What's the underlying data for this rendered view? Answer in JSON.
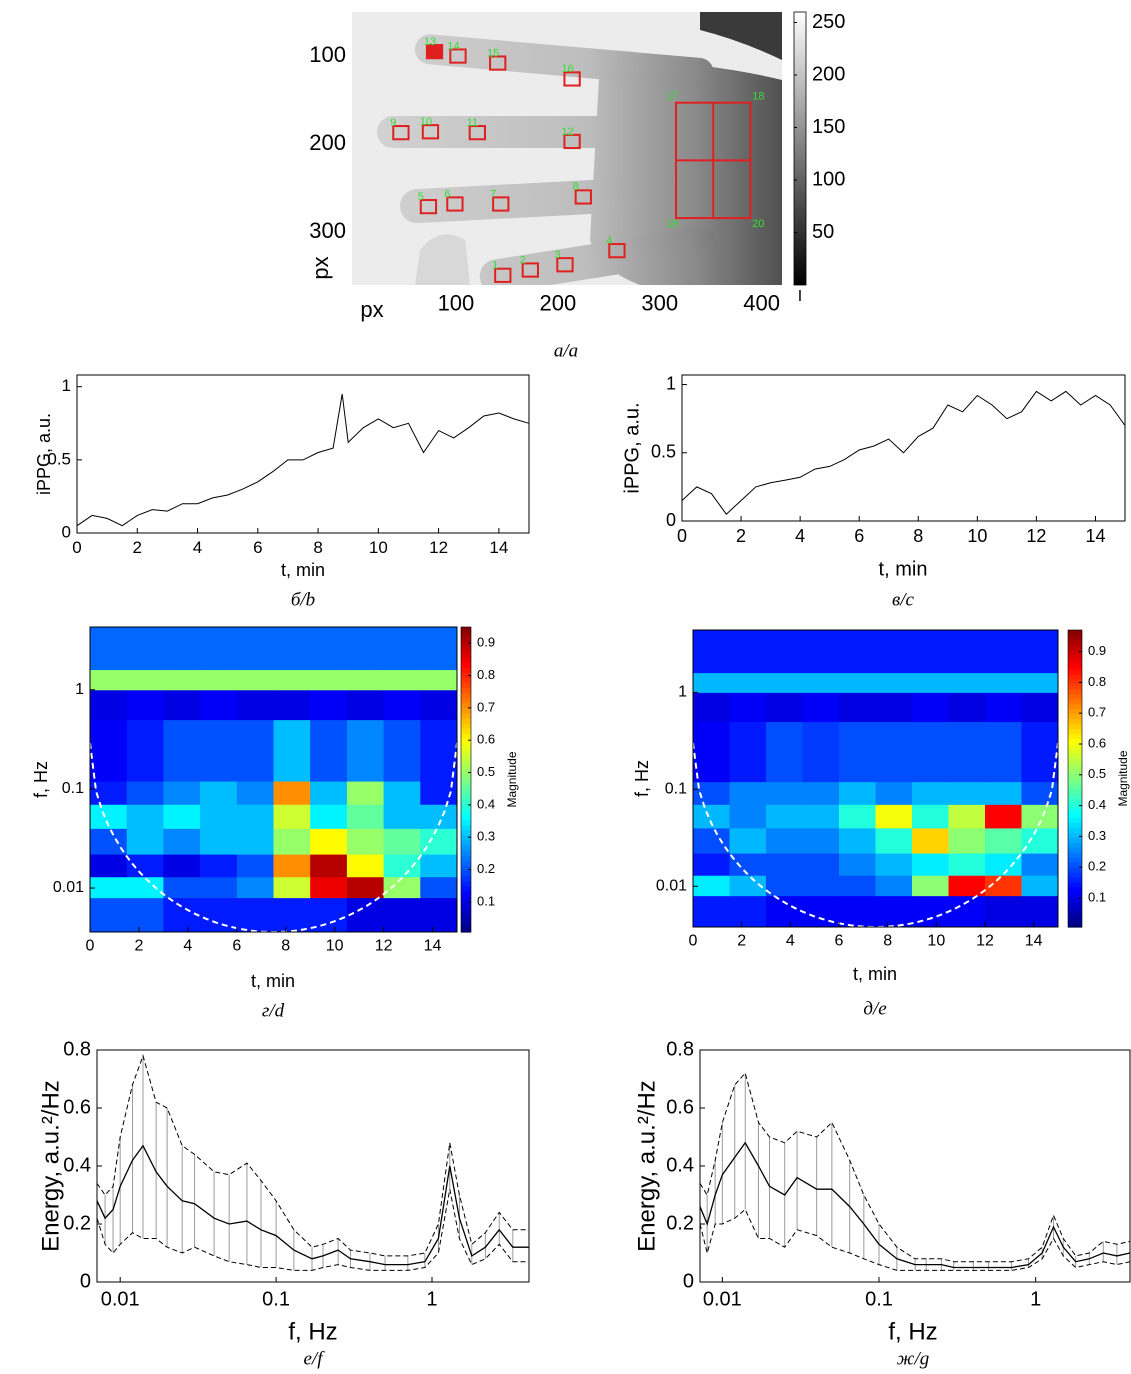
{
  "chart_data": [
    {
      "type": "image",
      "caption": "а/a",
      "xlabel": "px",
      "ylabel": "px",
      "xlim": [
        -2,
        420
      ],
      "ylim": [
        50,
        360
      ],
      "y_reversed": true,
      "xticks": [
        100,
        200,
        300,
        400
      ],
      "yticks": [
        100,
        200,
        300
      ],
      "roi_color": "#e02020",
      "label_color": "#33dd33",
      "rois": [
        {
          "label": "1",
          "x": 146,
          "y": 349
        },
        {
          "label": "2",
          "x": 173,
          "y": 343
        },
        {
          "label": "3",
          "x": 207,
          "y": 337
        },
        {
          "label": "4",
          "x": 258,
          "y": 321
        },
        {
          "label": "5",
          "x": 73,
          "y": 271
        },
        {
          "label": "6",
          "x": 99,
          "y": 268
        },
        {
          "label": "7",
          "x": 144,
          "y": 268
        },
        {
          "label": "8",
          "x": 225,
          "y": 260
        },
        {
          "label": "9",
          "x": 46,
          "y": 187
        },
        {
          "label": "10",
          "x": 75,
          "y": 186
        },
        {
          "label": "11",
          "x": 121,
          "y": 187
        },
        {
          "label": "12",
          "x": 214,
          "y": 197
        },
        {
          "label": "13",
          "x": 79,
          "y": 95,
          "filled": true
        },
        {
          "label": "14",
          "x": 102,
          "y": 100
        },
        {
          "label": "15",
          "x": 141,
          "y": 108
        },
        {
          "label": "16",
          "x": 214,
          "y": 126
        }
      ],
      "region": {
        "labels": [
          "17",
          "18",
          "19",
          "20"
        ],
        "x": [
          316,
          389
        ],
        "y": [
          153,
          284
        ]
      },
      "colorbar": {
        "lim": [
          0,
          260
        ],
        "ticks": [
          50,
          100,
          150,
          200,
          250
        ],
        "label": "I"
      }
    },
    {
      "type": "line",
      "caption": "б/b",
      "xlabel": "t, min",
      "ylabel": "iPPG, a.u.",
      "xlim": [
        0,
        15
      ],
      "ylim": [
        0,
        1.08
      ],
      "xticks": [
        0,
        2,
        4,
        6,
        8,
        10,
        12,
        14
      ],
      "yticks": [
        0,
        0.5,
        1
      ],
      "color": "#000000",
      "x": [
        0,
        0.5,
        1,
        1.5,
        2,
        2.5,
        3,
        3.5,
        4,
        4.5,
        5,
        5.5,
        6,
        6.5,
        7,
        7.5,
        8,
        8.5,
        8.8,
        9,
        9.5,
        10,
        10.5,
        11,
        11.5,
        12,
        12.5,
        13,
        13.5,
        14,
        14.5,
        15
      ],
      "values": [
        0.05,
        0.12,
        0.1,
        0.05,
        0.12,
        0.16,
        0.15,
        0.2,
        0.2,
        0.24,
        0.26,
        0.3,
        0.35,
        0.42,
        0.5,
        0.5,
        0.55,
        0.58,
        0.95,
        0.62,
        0.72,
        0.78,
        0.72,
        0.75,
        0.55,
        0.7,
        0.65,
        0.72,
        0.8,
        0.82,
        0.78,
        0.75
      ]
    },
    {
      "type": "line",
      "caption": "в/c",
      "xlabel": "t, min",
      "ylabel": "iPPG, a.u.",
      "xlim": [
        0,
        15
      ],
      "ylim": [
        0,
        1.07
      ],
      "xticks": [
        0,
        2,
        4,
        6,
        8,
        10,
        12,
        14
      ],
      "yticks": [
        0,
        0.5,
        1
      ],
      "color": "#000000",
      "x": [
        0,
        0.5,
        1,
        1.5,
        2,
        2.5,
        3,
        3.5,
        4,
        4.5,
        5,
        5.5,
        6,
        6.5,
        7,
        7.5,
        8,
        8.5,
        9,
        9.5,
        10,
        10.5,
        11,
        11.5,
        12,
        12.5,
        13,
        13.5,
        14,
        14.5,
        15
      ],
      "values": [
        0.15,
        0.25,
        0.2,
        0.05,
        0.15,
        0.25,
        0.28,
        0.3,
        0.32,
        0.38,
        0.4,
        0.45,
        0.52,
        0.55,
        0.6,
        0.5,
        0.62,
        0.68,
        0.85,
        0.8,
        0.92,
        0.85,
        0.75,
        0.8,
        0.95,
        0.88,
        0.95,
        0.85,
        0.92,
        0.85,
        0.7
      ]
    },
    {
      "type": "heatmap",
      "caption": "г/d",
      "xlabel": "t, min",
      "ylabel": "f, Hz",
      "xlim": [
        0,
        15
      ],
      "ylim": [
        0.0036,
        4.3
      ],
      "ylog": true,
      "xticks": [
        0,
        2,
        4,
        6,
        8,
        10,
        12,
        14
      ],
      "yticks": [
        0.01,
        0.1,
        1
      ],
      "colormap": "jet",
      "clim": [
        0.007,
        0.95
      ],
      "colorbar_ticks": [
        0.1,
        0.2,
        0.3,
        0.4,
        0.5,
        0.6,
        0.7,
        0.8,
        0.9
      ],
      "colorbar_label": "Magnitude",
      "cone_of_influence": true,
      "x_edges": [
        0,
        1.5,
        3,
        4.5,
        6,
        7.5,
        9,
        10.5,
        12,
        13.5,
        15
      ],
      "y_edges": [
        0.0036,
        0.008,
        0.013,
        0.022,
        0.04,
        0.07,
        0.12,
        0.5,
        1,
        1.6,
        4.3
      ],
      "values": [
        [
          0.2,
          0.2,
          0.15,
          0.15,
          0.15,
          0.15,
          0.15,
          0.1,
          0.1,
          0.1
        ],
        [
          0.35,
          0.35,
          0.2,
          0.2,
          0.25,
          0.55,
          0.85,
          0.9,
          0.5,
          0.2
        ],
        [
          0.1,
          0.15,
          0.1,
          0.15,
          0.2,
          0.7,
          0.9,
          0.6,
          0.4,
          0.3
        ],
        [
          0.2,
          0.3,
          0.25,
          0.3,
          0.3,
          0.5,
          0.6,
          0.5,
          0.45,
          0.4
        ],
        [
          0.35,
          0.3,
          0.35,
          0.3,
          0.3,
          0.55,
          0.35,
          0.45,
          0.3,
          0.3
        ],
        [
          0.15,
          0.2,
          0.25,
          0.3,
          0.25,
          0.7,
          0.3,
          0.5,
          0.3,
          0.15
        ],
        [
          0.12,
          0.15,
          0.2,
          0.2,
          0.2,
          0.3,
          0.2,
          0.25,
          0.2,
          0.15
        ],
        [
          0.1,
          0.12,
          0.1,
          0.12,
          0.1,
          0.1,
          0.12,
          0.1,
          0.12,
          0.1
        ],
        [
          0.5,
          0.5,
          0.5,
          0.5,
          0.5,
          0.5,
          0.5,
          0.5,
          0.5,
          0.5
        ],
        [
          0.22,
          0.22,
          0.22,
          0.22,
          0.22,
          0.22,
          0.22,
          0.22,
          0.22,
          0.22
        ]
      ]
    },
    {
      "type": "heatmap",
      "caption": "д/e",
      "xlabel": "t, min",
      "ylabel": "f, Hz",
      "xlim": [
        0,
        15
      ],
      "ylim": [
        0.0038,
        4.4
      ],
      "ylog": true,
      "xticks": [
        0,
        2,
        4,
        6,
        8,
        10,
        12,
        14
      ],
      "yticks": [
        0.01,
        0.1,
        1
      ],
      "colormap": "jet",
      "clim": [
        0.006,
        0.97
      ],
      "colorbar_ticks": [
        0.1,
        0.2,
        0.3,
        0.4,
        0.5,
        0.6,
        0.7,
        0.8,
        0.9
      ],
      "colorbar_label": "Magnitude",
      "cone_of_influence": true,
      "x_edges": [
        0,
        1.5,
        3,
        4.5,
        6,
        7.5,
        9,
        10.5,
        12,
        13.5,
        15
      ],
      "y_edges": [
        0.0038,
        0.008,
        0.013,
        0.022,
        0.04,
        0.07,
        0.12,
        0.5,
        1,
        1.6,
        4.4
      ],
      "values": [
        [
          0.15,
          0.15,
          0.12,
          0.12,
          0.12,
          0.12,
          0.12,
          0.12,
          0.1,
          0.1
        ],
        [
          0.35,
          0.3,
          0.2,
          0.2,
          0.2,
          0.25,
          0.5,
          0.85,
          0.8,
          0.3
        ],
        [
          0.15,
          0.2,
          0.2,
          0.2,
          0.25,
          0.3,
          0.35,
          0.4,
          0.35,
          0.25
        ],
        [
          0.2,
          0.3,
          0.25,
          0.25,
          0.3,
          0.4,
          0.65,
          0.5,
          0.45,
          0.4
        ],
        [
          0.3,
          0.25,
          0.3,
          0.3,
          0.4,
          0.6,
          0.4,
          0.55,
          0.85,
          0.5
        ],
        [
          0.2,
          0.25,
          0.25,
          0.25,
          0.3,
          0.25,
          0.3,
          0.3,
          0.3,
          0.2
        ],
        [
          0.12,
          0.15,
          0.2,
          0.18,
          0.2,
          0.2,
          0.2,
          0.2,
          0.2,
          0.15
        ],
        [
          0.1,
          0.12,
          0.1,
          0.12,
          0.1,
          0.1,
          0.12,
          0.1,
          0.12,
          0.1
        ],
        [
          0.3,
          0.3,
          0.3,
          0.3,
          0.3,
          0.3,
          0.3,
          0.3,
          0.3,
          0.3
        ],
        [
          0.15,
          0.15,
          0.15,
          0.15,
          0.15,
          0.15,
          0.15,
          0.15,
          0.15,
          0.15
        ]
      ]
    },
    {
      "type": "errorband",
      "caption": "е/f",
      "xlabel": "f, Hz",
      "ylabel": "Energy, a.u.²/Hz",
      "xlim": [
        0.0071,
        4.19
      ],
      "xlog": true,
      "ylim": [
        0,
        0.8
      ],
      "xticks": [
        0.01,
        0.1,
        1
      ],
      "yticks": [
        0,
        0.2,
        0.4,
        0.6,
        0.8
      ],
      "color": "#000000",
      "band_color": "#9a9a9a",
      "x": [
        0.0071,
        0.008,
        0.009,
        0.01,
        0.012,
        0.014,
        0.017,
        0.02,
        0.025,
        0.03,
        0.04,
        0.05,
        0.065,
        0.08,
        0.1,
        0.13,
        0.17,
        0.2,
        0.25,
        0.3,
        0.4,
        0.5,
        0.7,
        0.9,
        1.1,
        1.3,
        1.5,
        1.8,
        2.2,
        2.7,
        3.3,
        4.19
      ],
      "values": [
        0.28,
        0.22,
        0.25,
        0.33,
        0.42,
        0.47,
        0.38,
        0.33,
        0.28,
        0.27,
        0.22,
        0.2,
        0.21,
        0.18,
        0.16,
        0.11,
        0.08,
        0.09,
        0.11,
        0.08,
        0.07,
        0.06,
        0.06,
        0.07,
        0.15,
        0.4,
        0.22,
        0.09,
        0.12,
        0.18,
        0.12,
        0.12
      ],
      "upper": [
        0.34,
        0.3,
        0.33,
        0.5,
        0.68,
        0.78,
        0.62,
        0.6,
        0.47,
        0.44,
        0.38,
        0.37,
        0.41,
        0.35,
        0.28,
        0.18,
        0.12,
        0.13,
        0.15,
        0.11,
        0.1,
        0.09,
        0.09,
        0.1,
        0.2,
        0.48,
        0.3,
        0.13,
        0.17,
        0.24,
        0.18,
        0.18
      ],
      "lower": [
        0.22,
        0.13,
        0.1,
        0.13,
        0.17,
        0.15,
        0.15,
        0.12,
        0.1,
        0.12,
        0.09,
        0.07,
        0.06,
        0.05,
        0.05,
        0.04,
        0.04,
        0.05,
        0.06,
        0.05,
        0.04,
        0.04,
        0.04,
        0.05,
        0.1,
        0.32,
        0.15,
        0.06,
        0.08,
        0.13,
        0.07,
        0.07
      ]
    },
    {
      "type": "errorband",
      "caption": "ж/g",
      "xlabel": "f, Hz",
      "ylabel": "Energy, a.u.²/Hz",
      "xlim": [
        0.0072,
        4.0
      ],
      "xlog": true,
      "ylim": [
        0,
        0.8
      ],
      "xticks": [
        0.01,
        0.1,
        1
      ],
      "yticks": [
        0,
        0.2,
        0.4,
        0.6,
        0.8
      ],
      "color": "#000000",
      "band_color": "#9a9a9a",
      "x": [
        0.0072,
        0.008,
        0.009,
        0.01,
        0.012,
        0.014,
        0.017,
        0.02,
        0.025,
        0.03,
        0.04,
        0.05,
        0.065,
        0.08,
        0.1,
        0.13,
        0.17,
        0.2,
        0.25,
        0.3,
        0.4,
        0.5,
        0.7,
        0.9,
        1.1,
        1.3,
        1.5,
        1.8,
        2.2,
        2.7,
        3.3,
        4.0
      ],
      "values": [
        0.26,
        0.2,
        0.3,
        0.37,
        0.43,
        0.48,
        0.4,
        0.33,
        0.3,
        0.36,
        0.32,
        0.32,
        0.26,
        0.2,
        0.13,
        0.08,
        0.06,
        0.06,
        0.06,
        0.05,
        0.05,
        0.05,
        0.05,
        0.06,
        0.1,
        0.19,
        0.12,
        0.07,
        0.08,
        0.1,
        0.09,
        0.1
      ],
      "upper": [
        0.34,
        0.3,
        0.42,
        0.55,
        0.68,
        0.72,
        0.55,
        0.5,
        0.48,
        0.52,
        0.5,
        0.55,
        0.42,
        0.3,
        0.2,
        0.12,
        0.08,
        0.08,
        0.08,
        0.07,
        0.07,
        0.07,
        0.07,
        0.08,
        0.12,
        0.23,
        0.15,
        0.09,
        0.1,
        0.14,
        0.13,
        0.14
      ],
      "lower": [
        0.2,
        0.1,
        0.2,
        0.2,
        0.22,
        0.25,
        0.15,
        0.15,
        0.12,
        0.18,
        0.16,
        0.12,
        0.1,
        0.08,
        0.06,
        0.04,
        0.04,
        0.04,
        0.04,
        0.04,
        0.04,
        0.04,
        0.04,
        0.05,
        0.08,
        0.15,
        0.09,
        0.05,
        0.06,
        0.07,
        0.06,
        0.07
      ]
    }
  ]
}
